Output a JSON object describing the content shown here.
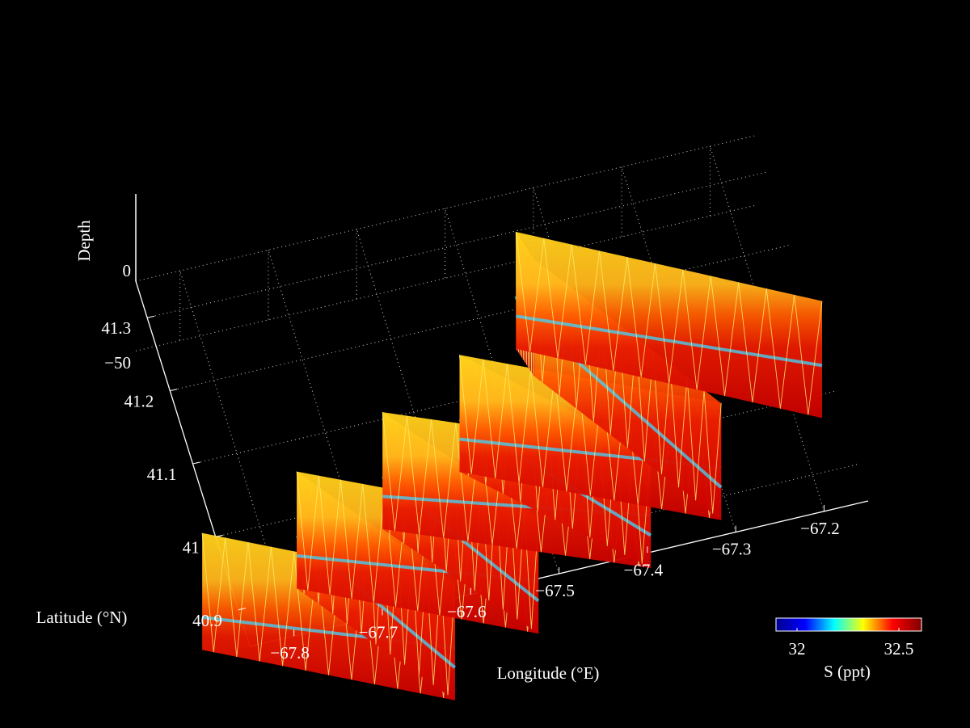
{
  "chart_data": {
    "type": "3d-surface-sections",
    "xlabel": "Longitude (°E)",
    "ylabel": "Latitude (°N)",
    "zlabel": "Depth",
    "xlim": [
      -67.85,
      -67.15
    ],
    "ylim": [
      40.85,
      41.35
    ],
    "zlim": [
      -80,
      0
    ],
    "x_ticks": [
      "-67.8",
      "-67.7",
      "-67.6",
      "-67.5",
      "-67.4",
      "-67.3",
      "-67.2"
    ],
    "y_ticks": [
      "40.9",
      "41",
      "41.1",
      "41.2",
      "41.3"
    ],
    "z_ticks": [
      "0",
      "-50"
    ],
    "grid": true,
    "colorbar": {
      "label": "S (ppt)",
      "range": [
        31.9,
        32.6
      ],
      "ticks": [
        "32",
        "32.5"
      ],
      "colormap": "jet",
      "colors": [
        "#00008f",
        "#0000ff",
        "#00ffff",
        "#ffff00",
        "#ff0000",
        "#800000"
      ],
      "placement": "bottom-right"
    },
    "track": {
      "points": [
        {
          "lon": -67.86,
          "lat": 41.02
        },
        {
          "lon": -67.61,
          "lat": 40.88
        },
        {
          "lon": -67.74,
          "lat": 41.07
        },
        {
          "lon": -67.5,
          "lat": 40.94
        },
        {
          "lon": -67.63,
          "lat": 41.12
        },
        {
          "lon": -67.36,
          "lat": 40.99
        },
        {
          "lon": -67.53,
          "lat": 41.17
        },
        {
          "lon": -67.27,
          "lat": 41.03
        },
        {
          "lon": -67.42,
          "lat": 41.27
        },
        {
          "lon": -67.43,
          "lat": 41.31
        },
        {
          "lon": -67.13,
          "lat": 41.13
        }
      ],
      "depth_range": [
        -5,
        -72
      ]
    }
  }
}
